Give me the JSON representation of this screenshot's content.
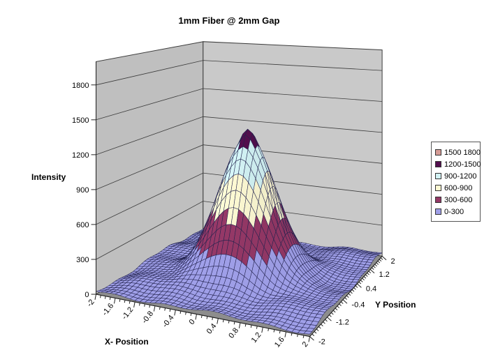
{
  "page": {
    "background": "#ffffff"
  },
  "chart_data": {
    "type": "surface",
    "title": "1mm Fiber @ 2mm Gap",
    "x_axis": {
      "label": "X- Position",
      "min": -2,
      "max": 2,
      "grid_step": 0.1,
      "tick_label_interval": 0.4,
      "tick_labels": [
        "-2",
        "-1.6",
        "-1.2",
        "-0.8",
        "-0.4",
        "0",
        "0.4",
        "0.8",
        "1.2",
        "1.6",
        "2"
      ]
    },
    "y_axis": {
      "label": "Y Position",
      "min": -2,
      "max": 2,
      "grid_step": 0.1,
      "tick_label_interval": 0.8,
      "tick_labels": [
        "-2",
        "-1.2",
        "-0.4",
        "0.4",
        "1.2",
        "2"
      ]
    },
    "z_axis": {
      "label": "Intensity",
      "min": 0,
      "max": 1800,
      "tick_interval": 300,
      "tick_labels": [
        "0",
        "300",
        "600",
        "900",
        "1200",
        "1500",
        "1800"
      ]
    },
    "bands": [
      {
        "range": "0-300",
        "color": "#9f9fe8"
      },
      {
        "range": "300-600",
        "color": "#943866"
      },
      {
        "range": "600-900",
        "color": "#fcf8d2"
      },
      {
        "range": "900-1200",
        "color": "#d2f2f4"
      },
      {
        "range": "1200-1500",
        "color": "#530e4e"
      },
      {
        "range": "1500 1800",
        "color": "#d59b95"
      }
    ],
    "legend": {
      "position": "right",
      "entries": [
        {
          "label": "1500 1800",
          "color": "#d59b95"
        },
        {
          "label": "1200-1500",
          "color": "#530e4e"
        },
        {
          "label": "900-1200",
          "color": "#d2f2f4"
        },
        {
          "label": "600-900",
          "color": "#fcf8d2"
        },
        {
          "label": "300-600",
          "color": "#943866"
        },
        {
          "label": "0-300",
          "color": "#9f9fe8"
        }
      ]
    },
    "surface": {
      "peak_value": 1290,
      "peak_position": [
        0,
        0
      ],
      "radial_profile": [
        [
          0,
          1290
        ],
        [
          0.1,
          1262
        ],
        [
          0.2,
          1180
        ],
        [
          0.3,
          1085
        ],
        [
          0.4,
          962
        ],
        [
          0.5,
          826
        ],
        [
          0.6,
          686
        ],
        [
          0.7,
          552
        ],
        [
          0.8,
          430
        ],
        [
          0.9,
          327
        ],
        [
          1.0,
          242
        ],
        [
          1.1,
          174
        ],
        [
          1.2,
          122
        ],
        [
          1.35,
          72
        ],
        [
          1.5,
          48
        ],
        [
          1.7,
          38
        ],
        [
          2.0,
          32
        ],
        [
          2.9,
          26
        ]
      ],
      "ripple": {
        "a1": 28,
        "f1": 2.3,
        "a2": 17,
        "f2": 3.3,
        "mask_radius": 1.02,
        "cap_amp": 38,
        "cap_radius": 0.3
      }
    },
    "colors": {
      "wall_left": "#bfbfbf",
      "wall_right": "#c9c9c9",
      "wall_line": "#3c3c3c",
      "floor": "#8d8d8d",
      "mesh_line": "#23234e",
      "axis_line": "#222222",
      "text": "#000000",
      "legend_border": "#555555"
    }
  }
}
